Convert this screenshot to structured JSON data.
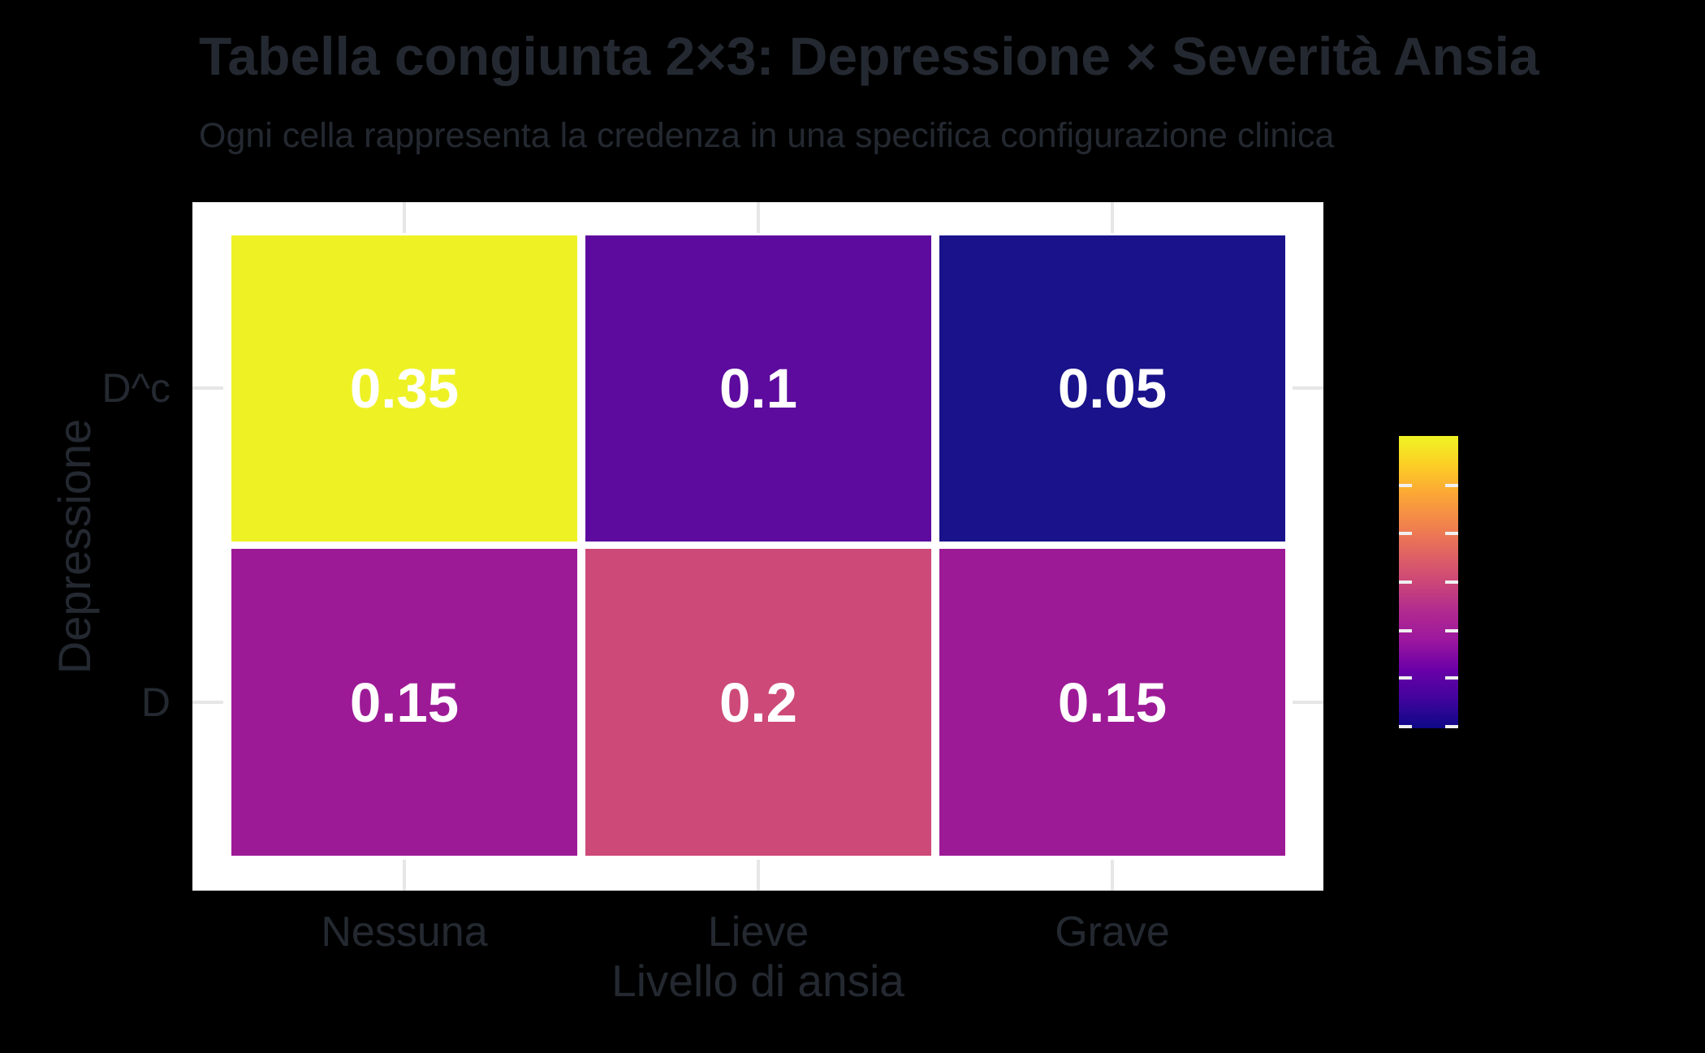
{
  "header": {
    "title": "Tabella congiunta 2×3: Depressione × Severità Ansia",
    "subtitle": "Ogni cella rappresenta la credenza in una specifica configurazione clinica"
  },
  "colors": {
    "background": "#000000",
    "panel_background": "#ffffff",
    "text": "#242931",
    "cell_value_text": "#ffffff",
    "axis_tick": "#e6e6e6",
    "colorbar_tick": "#f0f0f0"
  },
  "chart_data": {
    "type": "heatmap",
    "title": "Tabella congiunta 2×3: Depressione × Severità Ansia",
    "subtitle": "Ogni cella rappresenta la credenza in una specifica configurazione clinica",
    "xlabel": "Livello di ansia",
    "ylabel": "Depressione",
    "x_categories": [
      "Nessuna",
      "Lieve",
      "Grave"
    ],
    "y_categories": [
      "D^c",
      "D"
    ],
    "values": [
      [
        0.35,
        0.1,
        0.05
      ],
      [
        0.15,
        0.2,
        0.15
      ]
    ],
    "grid": false,
    "legend_position": "right",
    "cells": [
      {
        "row": "D^c",
        "col": "Nessuna",
        "value": 0.35,
        "label": "0.35",
        "color": "#eef224"
      },
      {
        "row": "D^c",
        "col": "Lieve",
        "value": 0.1,
        "label": "0.1",
        "color": "#5d0a9e"
      },
      {
        "row": "D^c",
        "col": "Grave",
        "value": 0.05,
        "label": "0.05",
        "color": "#19128b"
      },
      {
        "row": "D",
        "col": "Nessuna",
        "value": 0.15,
        "label": "0.15",
        "color": "#9d1a97"
      },
      {
        "row": "D",
        "col": "Lieve",
        "value": 0.2,
        "label": "0.2",
        "color": "#cd4977"
      },
      {
        "row": "D",
        "col": "Grave",
        "value": 0.15,
        "label": "0.15",
        "color": "#9d1a97"
      }
    ],
    "colorbar": {
      "orientation": "vertical",
      "colormap": "plasma",
      "value_min": 0.05,
      "value_max": 0.35,
      "tick_count": 6,
      "labels_visible": false,
      "gradient_top_to_bottom": [
        "#f0f424",
        "#fcce25",
        "#fca636",
        "#f2844b",
        "#e16462",
        "#cc4778",
        "#b12a90",
        "#9c179e",
        "#6a00a8",
        "#41049d",
        "#0d0887"
      ]
    }
  }
}
